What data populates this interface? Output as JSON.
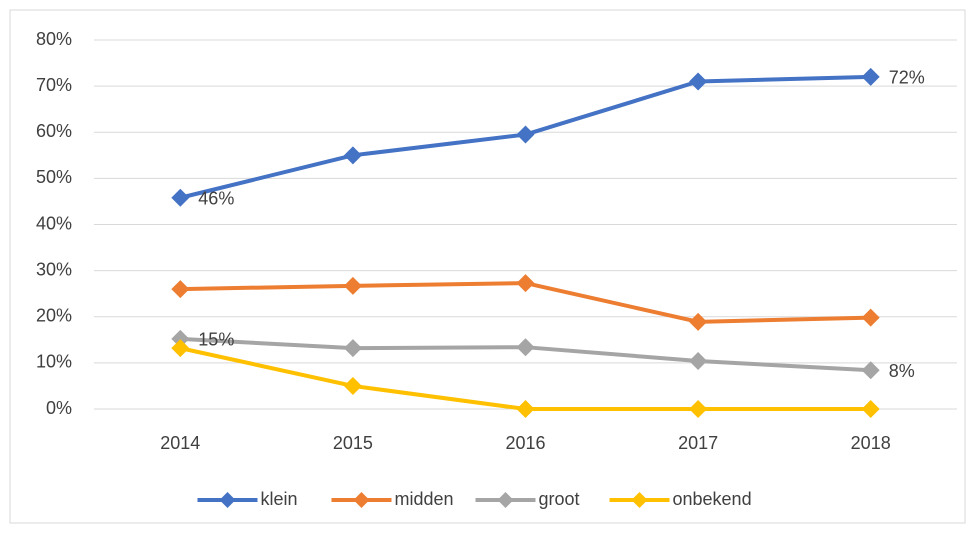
{
  "chart_data": {
    "type": "line",
    "categories": [
      "2014",
      "2015",
      "2016",
      "2017",
      "2018"
    ],
    "series": [
      {
        "name": "klein",
        "color": "#4472c4",
        "values": [
          45.8,
          55,
          59.5,
          71,
          72
        ],
        "value_labels": [
          "46%",
          null,
          null,
          null,
          "72%"
        ]
      },
      {
        "name": "midden",
        "color": "#ed7d31",
        "values": [
          26,
          26.7,
          27.3,
          18.9,
          19.8
        ]
      },
      {
        "name": "groot",
        "color": "#a5a5a5",
        "values": [
          15.2,
          13.2,
          13.4,
          10.4,
          8.4
        ],
        "value_labels": [
          "15%",
          null,
          null,
          null,
          "8%"
        ]
      },
      {
        "name": "onbekend",
        "color": "#ffc000",
        "values": [
          13.2,
          5,
          0,
          0,
          0
        ]
      }
    ],
    "ylim": [
      0,
      80
    ],
    "yticks": [
      {
        "value": 0,
        "label": "0%"
      },
      {
        "value": 10,
        "label": "10%"
      },
      {
        "value": 20,
        "label": "20%"
      },
      {
        "value": 30,
        "label": "30%"
      },
      {
        "value": 40,
        "label": "40%"
      },
      {
        "value": 50,
        "label": "50%"
      },
      {
        "value": 60,
        "label": "60%"
      },
      {
        "value": 70,
        "label": "70%"
      },
      {
        "value": 80,
        "label": "80%"
      }
    ],
    "grid": true,
    "legend": "bottom"
  }
}
